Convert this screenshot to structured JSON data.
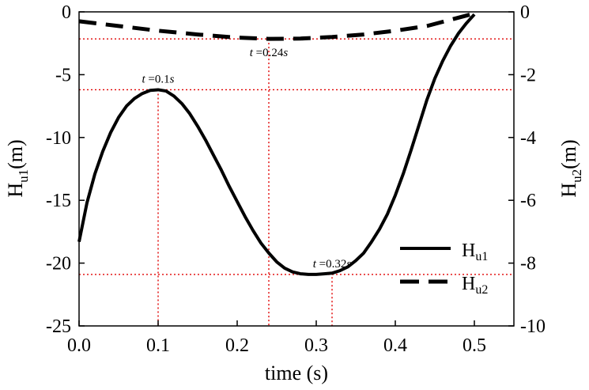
{
  "chart_data": {
    "type": "line",
    "xlabel": "time (s)",
    "ylabel_left": {
      "main": "H",
      "sub": "u1",
      "unit": "(m)"
    },
    "ylabel_right": {
      "main": "H",
      "sub": "u2",
      "unit": "(m)"
    },
    "xlim": [
      0.0,
      0.55
    ],
    "ylim_left": [
      -25,
      0
    ],
    "ylim_right": [
      -10,
      0
    ],
    "x_ticks": [
      0.0,
      0.1,
      0.2,
      0.3,
      0.4,
      0.5
    ],
    "x_tick_labels": [
      "0.0",
      "0.1",
      "0.2",
      "0.3",
      "0.4",
      "0.5"
    ],
    "y_left_ticks": [
      0,
      -5,
      -10,
      -15,
      -20,
      -25
    ],
    "y_left_tick_labels": [
      "0",
      "-5",
      "-10",
      "-15",
      "-20",
      "-25"
    ],
    "y_right_ticks": [
      0,
      -2,
      -4,
      -6,
      -8,
      -10
    ],
    "y_right_tick_labels": [
      "0",
      "-2",
      "-4",
      "-6",
      "-8",
      "-10"
    ],
    "grid": false,
    "legend_position": "bottom-right",
    "series": [
      {
        "name": "Hu1",
        "label_main": "H",
        "label_sub": "u1",
        "axis": "left",
        "style": "solid",
        "color": "#000000",
        "x": [
          0.0,
          0.01,
          0.02,
          0.03,
          0.04,
          0.05,
          0.06,
          0.07,
          0.08,
          0.09,
          0.1,
          0.11,
          0.12,
          0.13,
          0.14,
          0.15,
          0.16,
          0.17,
          0.18,
          0.19,
          0.2,
          0.21,
          0.22,
          0.23,
          0.24,
          0.25,
          0.26,
          0.27,
          0.28,
          0.29,
          0.3,
          0.31,
          0.32,
          0.33,
          0.34,
          0.35,
          0.36,
          0.37,
          0.38,
          0.39,
          0.4,
          0.41,
          0.42,
          0.43,
          0.44,
          0.45,
          0.46,
          0.47,
          0.48,
          0.49,
          0.5
        ],
        "y": [
          -18.3,
          -15.2,
          -12.9,
          -11.1,
          -9.6,
          -8.4,
          -7.5,
          -6.9,
          -6.5,
          -6.25,
          -6.2,
          -6.3,
          -6.7,
          -7.3,
          -8.1,
          -9.1,
          -10.2,
          -11.4,
          -12.6,
          -13.9,
          -15.1,
          -16.3,
          -17.4,
          -18.4,
          -19.2,
          -19.9,
          -20.4,
          -20.7,
          -20.85,
          -20.9,
          -20.9,
          -20.85,
          -20.8,
          -20.6,
          -20.3,
          -19.8,
          -19.2,
          -18.3,
          -17.3,
          -16.1,
          -14.6,
          -12.9,
          -11.0,
          -9.0,
          -7.0,
          -5.3,
          -3.9,
          -2.7,
          -1.7,
          -0.9,
          -0.2
        ]
      },
      {
        "name": "Hu2",
        "label_main": "H",
        "label_sub": "u2",
        "axis": "right",
        "style": "dashed",
        "color": "#000000",
        "x": [
          0.0,
          0.05,
          0.1,
          0.15,
          0.2,
          0.24,
          0.28,
          0.32,
          0.36,
          0.4,
          0.44,
          0.47,
          0.5
        ],
        "y": [
          -0.3,
          -0.45,
          -0.6,
          -0.72,
          -0.82,
          -0.86,
          -0.85,
          -0.8,
          -0.72,
          -0.6,
          -0.45,
          -0.25,
          -0.05
        ]
      }
    ],
    "reference_lines": {
      "color": "#e00000",
      "vertical_x": [
        0.1,
        0.24,
        0.32
      ],
      "horizontal_left_y": [
        -6.2,
        -20.9
      ],
      "horizontal_right_y": [
        -0.86
      ]
    },
    "annotations": [
      {
        "x": 0.1,
        "y_left": -6.2,
        "var": "t",
        "text": "=0.1s",
        "position": "above"
      },
      {
        "x": 0.24,
        "y_left": -2.15,
        "var": "t",
        "text": "=0.24s",
        "position": "below"
      },
      {
        "x": 0.32,
        "y_left": -20.9,
        "var": "t",
        "text": "=0.32s",
        "position": "above"
      }
    ]
  }
}
